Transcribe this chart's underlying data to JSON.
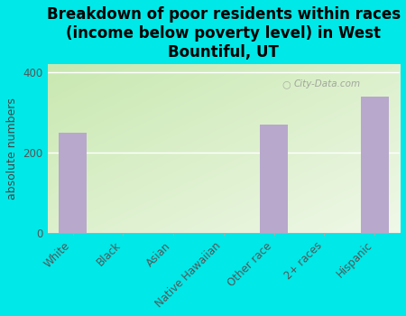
{
  "categories": [
    "White",
    "Black",
    "Asian",
    "Native Hawaiian",
    "Other race",
    "2+ races",
    "Hispanic"
  ],
  "values": [
    250,
    0,
    0,
    0,
    270,
    0,
    340
  ],
  "bar_color": "#b8a8cc",
  "title": "Breakdown of poor residents within races\n(income below poverty level) in West\nBountiful, UT",
  "ylabel": "absolute numbers",
  "ylim": [
    0,
    420
  ],
  "yticks": [
    0,
    200,
    400
  ],
  "background_color": "#00e8e8",
  "plot_bg_color_top_left": "#c8e8b0",
  "plot_bg_color_bottom_right": "#f0f8e8",
  "watermark": "City-Data.com",
  "title_fontsize": 12,
  "ylabel_fontsize": 9,
  "tick_fontsize": 8.5
}
